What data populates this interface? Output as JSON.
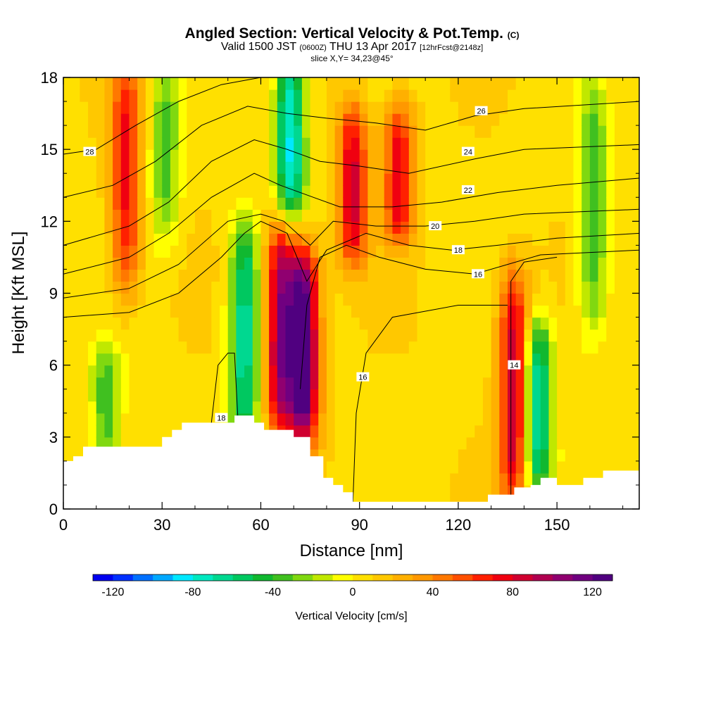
{
  "header": {
    "title_main": "Angled Section: Vertical Velocity & Pot.Temp.",
    "title_mark": "(C)",
    "sub_pre": "Valid 1500 JST",
    "sub_utc": "(0600Z)",
    "sub_date": "THU 13 Apr 2017",
    "sub_fcst": "[12hrFcst@2148z]",
    "slice": "slice X,Y= 34,23@45°"
  },
  "chart_data": {
    "type": "heatmap",
    "xlabel": "Distance [nm]",
    "ylabel": "Height [Kft MSL]",
    "xlim": [
      0,
      175
    ],
    "ylim": [
      0,
      18
    ],
    "x_ticks": [
      0,
      30,
      60,
      90,
      120,
      150
    ],
    "y_ticks": [
      0,
      3,
      6,
      9,
      12,
      15,
      18
    ],
    "colorbar": {
      "label": "Vertical Velocity [cm/s]",
      "min": -130,
      "max": 130,
      "ticks": [
        -120,
        -80,
        -40,
        0,
        40,
        80,
        120
      ],
      "colors": [
        "#0000f0",
        "#0030ff",
        "#0070ff",
        "#00a8ff",
        "#00e8ff",
        "#00e8c0",
        "#00d890",
        "#00c860",
        "#10b830",
        "#40c020",
        "#80d810",
        "#c0e800",
        "#ffff00",
        "#ffe000",
        "#ffc800",
        "#ffb000",
        "#ff9800",
        "#ff7800",
        "#ff5000",
        "#ff2000",
        "#f00010",
        "#d00030",
        "#b00050",
        "#900070",
        "#700080",
        "#500080"
      ]
    },
    "velocity_features": [
      {
        "x": 19,
        "z0": 10,
        "z1": 18,
        "w": 65
      },
      {
        "x": 31,
        "z0": 12,
        "z1": 18,
        "w": -40
      },
      {
        "x": 13,
        "z0": 2.5,
        "z1": 6,
        "w": -45
      },
      {
        "x": 55,
        "z0": 3.5,
        "z1": 11,
        "w": -75
      },
      {
        "x": 66,
        "z0": 4,
        "z1": 11,
        "w": 95
      },
      {
        "x": 73,
        "z0": 3.5,
        "z1": 10,
        "w": 125
      },
      {
        "x": 69,
        "z0": 13,
        "z1": 18,
        "w": -90
      },
      {
        "x": 88,
        "z0": 11,
        "z1": 16,
        "w": 75
      },
      {
        "x": 102,
        "z0": 12,
        "z1": 16,
        "w": 70
      },
      {
        "x": 137,
        "z0": 1,
        "z1": 9,
        "w": 85
      },
      {
        "x": 144,
        "z0": 1.5,
        "z1": 7,
        "w": -80
      },
      {
        "x": 161,
        "z0": 8,
        "z1": 17,
        "w": -45
      }
    ],
    "terrain_kft": [
      [
        0,
        2
      ],
      [
        3,
        2
      ],
      [
        3,
        2.2
      ],
      [
        6,
        2.2
      ],
      [
        6,
        2.6
      ],
      [
        30,
        2.6
      ],
      [
        30,
        3
      ],
      [
        33,
        3
      ],
      [
        33,
        3.3
      ],
      [
        36,
        3.3
      ],
      [
        36,
        3.6
      ],
      [
        52,
        3.6
      ],
      [
        52,
        3.9
      ],
      [
        58,
        3.9
      ],
      [
        58,
        3.6
      ],
      [
        61,
        3.6
      ],
      [
        61,
        3.3
      ],
      [
        70,
        3.3
      ],
      [
        70,
        3
      ],
      [
        75,
        3
      ],
      [
        75,
        2.2
      ],
      [
        79,
        2.2
      ],
      [
        79,
        1.3
      ],
      [
        82,
        1.3
      ],
      [
        82,
        1
      ],
      [
        85,
        1
      ],
      [
        85,
        0.7
      ],
      [
        88,
        0.7
      ],
      [
        88,
        0.3
      ],
      [
        129,
        0.3
      ],
      [
        129,
        0.6
      ],
      [
        137,
        0.6
      ],
      [
        137,
        0.9
      ],
      [
        142,
        0.9
      ],
      [
        142,
        1
      ],
      [
        145,
        1
      ],
      [
        145,
        1.3
      ],
      [
        150,
        1.3
      ],
      [
        150,
        1
      ],
      [
        158,
        1
      ],
      [
        158,
        1.3
      ],
      [
        164,
        1.3
      ],
      [
        164,
        1.6
      ],
      [
        175,
        1.6
      ]
    ],
    "theta_contours": [
      {
        "label": "14",
        "pts": [
          [
            136,
            0.6
          ],
          [
            136,
            9.5
          ],
          [
            140,
            10.3
          ],
          [
            150,
            10.5
          ]
        ],
        "label_at": [
          137,
          6
        ]
      },
      {
        "label": "16",
        "pts": [
          [
            72,
            5
          ],
          [
            74,
            8.5
          ],
          [
            78,
            10.5
          ],
          [
            86,
            11
          ],
          [
            96,
            10.5
          ],
          [
            110,
            10
          ],
          [
            125,
            9.8
          ],
          [
            135,
            10.2
          ],
          [
            145,
            10.6
          ],
          [
            175,
            10.8
          ]
        ],
        "label_at": [
          126,
          9.8
        ]
      },
      {
        "label": "16",
        "pts": [
          [
            88,
            0.3
          ],
          [
            89,
            4
          ],
          [
            92,
            6.5
          ],
          [
            100,
            8
          ],
          [
            120,
            8.5
          ],
          [
            135,
            8.5
          ]
        ],
        "label_at": [
          91,
          5.5
        ]
      },
      {
        "label": "18",
        "pts": [
          [
            45,
            3.6
          ],
          [
            47,
            6
          ],
          [
            50,
            6.5
          ],
          [
            52,
            6.5
          ],
          [
            53,
            3.9
          ]
        ],
        "label_at": [
          48,
          3.8
        ]
      },
      {
        "label": "18",
        "pts": [
          [
            0,
            8
          ],
          [
            20,
            8.2
          ],
          [
            35,
            9
          ],
          [
            48,
            10.5
          ],
          [
            55,
            11.5
          ],
          [
            60,
            12
          ],
          [
            68,
            11.5
          ],
          [
            74,
            9.5
          ],
          [
            80,
            10.8
          ],
          [
            92,
            11.5
          ],
          [
            105,
            11
          ],
          [
            118,
            10.8
          ],
          [
            132,
            11
          ],
          [
            150,
            11.3
          ],
          [
            175,
            11.5
          ]
        ],
        "label_at": [
          120,
          10.8
        ]
      },
      {
        "label": "20",
        "pts": [
          [
            0,
            8.8
          ],
          [
            20,
            9.2
          ],
          [
            35,
            10.2
          ],
          [
            50,
            12
          ],
          [
            60,
            12.3
          ],
          [
            67,
            12
          ],
          [
            75,
            11
          ],
          [
            82,
            12
          ],
          [
            95,
            11.8
          ],
          [
            110,
            11.8
          ],
          [
            125,
            12
          ],
          [
            140,
            12.3
          ],
          [
            175,
            12.5
          ]
        ],
        "label_at": [
          113,
          11.8
        ]
      },
      {
        "label": "22",
        "pts": [
          [
            0,
            9.8
          ],
          [
            20,
            10.5
          ],
          [
            32,
            11.5
          ],
          [
            45,
            13
          ],
          [
            58,
            14
          ],
          [
            66,
            13.5
          ],
          [
            76,
            13
          ],
          [
            84,
            12.6
          ],
          [
            100,
            12.6
          ],
          [
            115,
            12.8
          ],
          [
            132,
            13.2
          ],
          [
            150,
            13.5
          ],
          [
            175,
            13.8
          ]
        ],
        "label_at": [
          123,
          13.3
        ]
      },
      {
        "label": "24",
        "pts": [
          [
            0,
            11
          ],
          [
            20,
            11.8
          ],
          [
            32,
            12.8
          ],
          [
            45,
            14.5
          ],
          [
            58,
            15.4
          ],
          [
            68,
            15
          ],
          [
            78,
            14.5
          ],
          [
            90,
            14.3
          ],
          [
            105,
            14
          ],
          [
            125,
            14.6
          ],
          [
            140,
            15
          ],
          [
            175,
            15.2
          ]
        ],
        "label_at": [
          123,
          14.9
        ]
      },
      {
        "label": "26",
        "pts": [
          [
            0,
            13
          ],
          [
            15,
            13.5
          ],
          [
            28,
            14.5
          ],
          [
            42,
            16
          ],
          [
            56,
            16.8
          ],
          [
            68,
            16.5
          ],
          [
            80,
            16.3
          ],
          [
            95,
            16.1
          ],
          [
            110,
            15.8
          ],
          [
            125,
            16.4
          ],
          [
            140,
            16.7
          ],
          [
            175,
            17
          ]
        ],
        "label_at": [
          127,
          16.6
        ]
      },
      {
        "label": "28",
        "pts": [
          [
            0,
            14.8
          ],
          [
            10,
            15
          ],
          [
            22,
            16
          ],
          [
            35,
            17
          ],
          [
            48,
            17.7
          ],
          [
            60,
            18
          ]
        ],
        "label_at": [
          8,
          14.9
        ]
      }
    ]
  }
}
